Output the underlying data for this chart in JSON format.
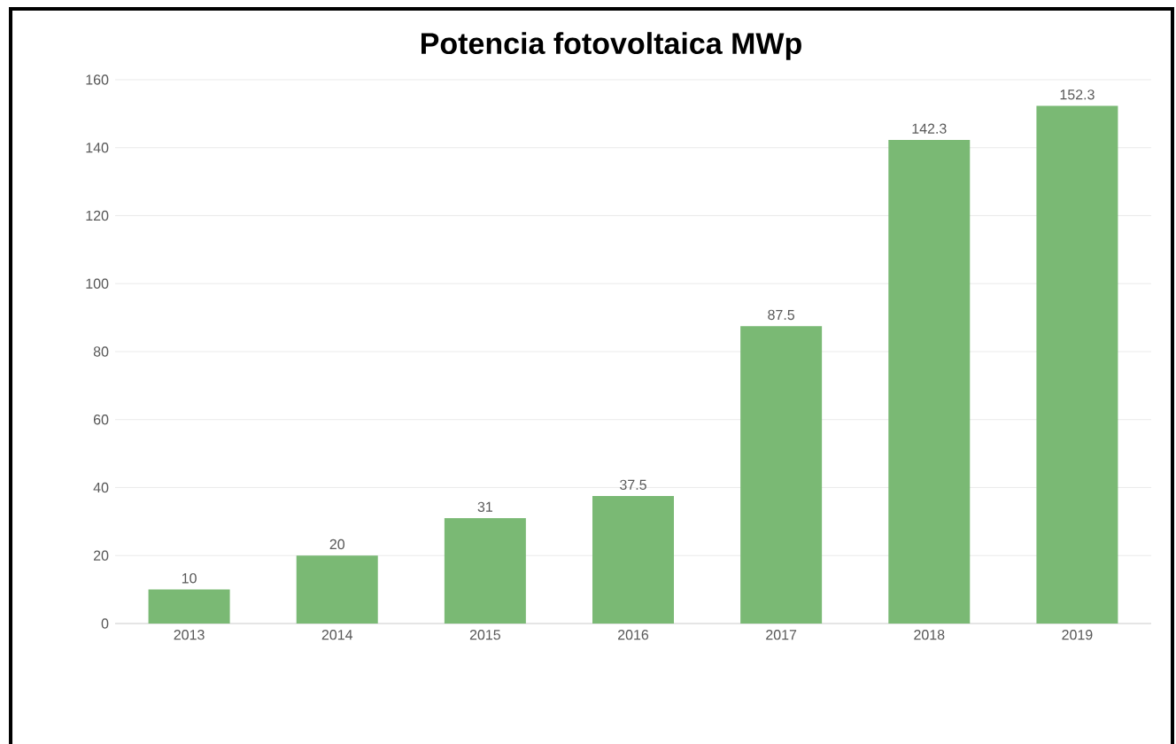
{
  "chart_data": {
    "type": "bar",
    "title": "Potencia fotovoltaica MWp",
    "categories": [
      "2013",
      "2014",
      "2015",
      "2016",
      "2017",
      "2018",
      "2019"
    ],
    "values": [
      10,
      20,
      31,
      37.5,
      87.5,
      142.3,
      152.3
    ],
    "color": "#7ab974",
    "ylim": [
      0,
      160
    ],
    "yticks": [
      0,
      20,
      40,
      60,
      80,
      100,
      120,
      140,
      160
    ],
    "grid": "y",
    "data_labels": true
  }
}
